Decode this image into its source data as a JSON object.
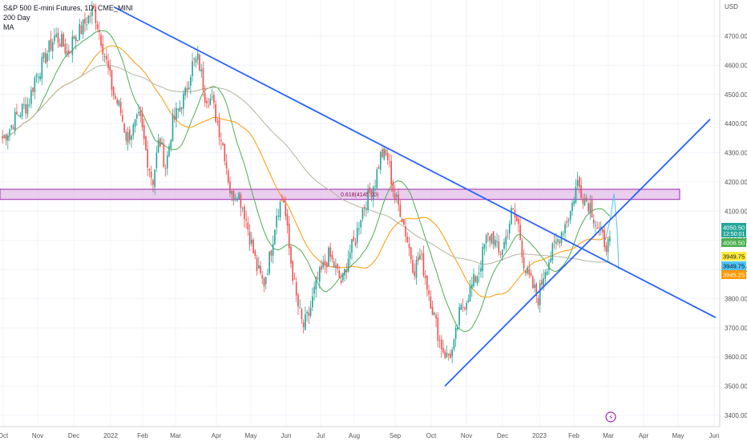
{
  "legend": {
    "title": "S&P 500 E-mini Futures, 1D, CME_MINI",
    "ma_200": "200 Day",
    "ma": "MA"
  },
  "colors": {
    "up": "#26a69a",
    "down": "#ef5350",
    "trend_line": "#2962ff",
    "zone_fill": "#e1bee7",
    "zone_stroke": "#9c27b0",
    "ma_green": "#4caf50",
    "ma_orange": "#ff9800",
    "ma_gray": "#b5b5a0",
    "projection": "#4fc3f7",
    "grid": "#f0f3fa",
    "axis_text": "#555555"
  },
  "chart_data": {
    "type": "candlestick",
    "title": "S&P 500 E-mini Futures, 1D, CME_MINI",
    "currency_label": "USD",
    "y_ticks": [
      "3400.00",
      "3500.00",
      "3600.00",
      "3700.00",
      "3800.00",
      "3900.00",
      "4000.00",
      "4100.00",
      "4200.00",
      "4300.00",
      "4400.00",
      "4500.00",
      "4600.00",
      "4700.00"
    ],
    "x_ticks": [
      "Oct",
      "Nov",
      "Dec",
      "2022",
      "Feb",
      "Mar",
      "Apr",
      "May",
      "Jun",
      "Jul",
      "Aug",
      "Sep",
      "Oct",
      "Nov",
      "Dec",
      "2023",
      "Feb",
      "Mar",
      "Apr",
      "May",
      "Jun"
    ],
    "ylim": [
      3370,
      4800
    ],
    "zone": {
      "from": 4140,
      "to": 4175,
      "label": "0.618(4145.00)"
    },
    "trend_lines": [
      {
        "name": "descending",
        "from": [
          "2021-12-01",
          4800
        ],
        "to": [
          "2023-06-01",
          3735
        ]
      },
      {
        "name": "ascending",
        "from": [
          "2022-10-13",
          3500
        ],
        "to": [
          "2023-06-01",
          4415
        ]
      }
    ],
    "price_labels": [
      {
        "value": "4050.50",
        "sub": "12:50:01",
        "color": "#26a69a"
      },
      {
        "value": "4006.50",
        "color": "#4caf50"
      },
      {
        "value": "3949.75",
        "color": "#ffeb3b"
      },
      {
        "value": "3949.75",
        "color": "#4fc3f7"
      },
      {
        "value": "3945.25",
        "color": "#ff9800"
      }
    ],
    "price_path": [
      4350,
      4380,
      4420,
      4450,
      4470,
      4560,
      4600,
      4650,
      4700,
      4680,
      4640,
      4700,
      4720,
      4760,
      4790,
      4700,
      4600,
      4500,
      4450,
      4350,
      4380,
      4420,
      4300,
      4200,
      4350,
      4250,
      4400,
      4450,
      4500,
      4600,
      4620,
      4500,
      4480,
      4400,
      4300,
      4150,
      4170,
      4100,
      4000,
      3900,
      3850,
      3950,
      4100,
      4150,
      3950,
      3800,
      3700,
      3750,
      3850,
      3900,
      3950,
      3900,
      3850,
      3950,
      4000,
      4100,
      4150,
      4200,
      4300,
      4280,
      4150,
      4100,
      4000,
      3900,
      3950,
      3850,
      3750,
      3650,
      3600,
      3620,
      3750,
      3800,
      3850,
      3900,
      4000,
      4020,
      3950,
      4000,
      4100,
      4050,
      3900,
      3850,
      3800,
      3900,
      3950,
      4000,
      4050,
      4100,
      4200,
      4150,
      4120,
      4050,
      4000,
      3980
    ]
  }
}
